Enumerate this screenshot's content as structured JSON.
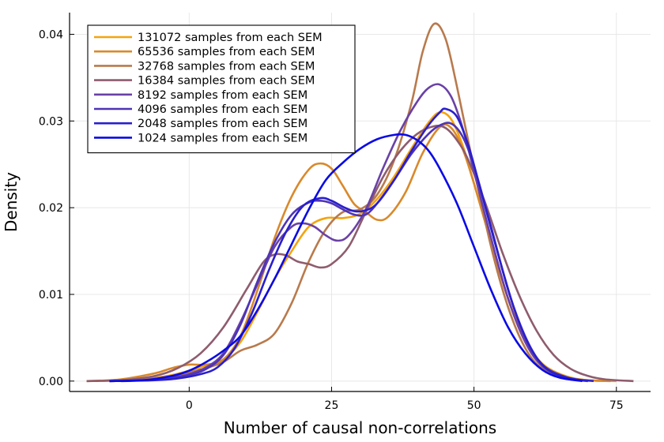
{
  "chart_data": {
    "type": "line",
    "title": "",
    "xlabel": "Number of causal non-correlations",
    "ylabel": "Density",
    "xlim": [
      -21,
      81
    ],
    "ylim": [
      -0.0012,
      0.0425
    ],
    "xticks": [
      0,
      25,
      50,
      75
    ],
    "xtick_labels": [
      "0",
      "25",
      "50",
      "75"
    ],
    "yticks": [
      0.0,
      0.01,
      0.02,
      0.03,
      0.04
    ],
    "ytick_labels": [
      "0.00",
      "0.01",
      "0.02",
      "0.03",
      "0.04"
    ],
    "grid": true,
    "legend_position": "top-left",
    "series": [
      {
        "name": "131072 samples from each SEM",
        "color": "#f4a30d",
        "points": [
          [
            -14,
            0
          ],
          [
            -8,
            0.0002
          ],
          [
            -3,
            0.0007
          ],
          [
            0,
            0.0012
          ],
          [
            3,
            0.0018
          ],
          [
            6,
            0.0025
          ],
          [
            9,
            0.0045
          ],
          [
            12,
            0.008
          ],
          [
            15,
            0.0118
          ],
          [
            18,
            0.015
          ],
          [
            21,
            0.0178
          ],
          [
            24,
            0.0188
          ],
          [
            27,
            0.0188
          ],
          [
            30,
            0.0193
          ],
          [
            33,
            0.021
          ],
          [
            36,
            0.0236
          ],
          [
            39,
            0.0268
          ],
          [
            42,
            0.0298
          ],
          [
            44,
            0.031
          ],
          [
            46,
            0.0302
          ],
          [
            48,
            0.0272
          ],
          [
            50,
            0.0228
          ],
          [
            53,
            0.016
          ],
          [
            56,
            0.0095
          ],
          [
            59,
            0.0048
          ],
          [
            62,
            0.002
          ],
          [
            66,
            0.0006
          ],
          [
            70,
            0.0001
          ],
          [
            75,
            0
          ]
        ]
      },
      {
        "name": "65536 samples from each SEM",
        "color": "#d9892b",
        "points": [
          [
            -18,
            0
          ],
          [
            -12,
            0.0002
          ],
          [
            -6,
            0.0009
          ],
          [
            -3,
            0.0015
          ],
          [
            0,
            0.0019
          ],
          [
            3,
            0.0019
          ],
          [
            6,
            0.0025
          ],
          [
            9,
            0.0052
          ],
          [
            12,
            0.0105
          ],
          [
            15,
            0.0165
          ],
          [
            18,
            0.0213
          ],
          [
            21,
            0.0244
          ],
          [
            23,
            0.0251
          ],
          [
            25,
            0.0245
          ],
          [
            27,
            0.0225
          ],
          [
            29,
            0.0204
          ],
          [
            31,
            0.0195
          ],
          [
            33,
            0.0186
          ],
          [
            35,
            0.019
          ],
          [
            38,
            0.0218
          ],
          [
            41,
            0.0263
          ],
          [
            44,
            0.0293
          ],
          [
            46,
            0.0292
          ],
          [
            48,
            0.0268
          ],
          [
            50,
            0.0228
          ],
          [
            53,
            0.016
          ],
          [
            56,
            0.0095
          ],
          [
            59,
            0.0047
          ],
          [
            62,
            0.0019
          ],
          [
            66,
            0.0005
          ],
          [
            70,
            0.0001
          ],
          [
            74,
            0
          ]
        ]
      },
      {
        "name": "32768 samples from each SEM",
        "color": "#b87a4d",
        "points": [
          [
            -14,
            0
          ],
          [
            -8,
            0.0002
          ],
          [
            -3,
            0.0006
          ],
          [
            0,
            0.001
          ],
          [
            3,
            0.0015
          ],
          [
            6,
            0.0022
          ],
          [
            9,
            0.0035
          ],
          [
            12,
            0.0042
          ],
          [
            15,
            0.0055
          ],
          [
            18,
            0.009
          ],
          [
            21,
            0.0138
          ],
          [
            24,
            0.0175
          ],
          [
            27,
            0.0195
          ],
          [
            30,
            0.0198
          ],
          [
            33,
            0.0215
          ],
          [
            36,
            0.0255
          ],
          [
            39,
            0.032
          ],
          [
            41,
            0.038
          ],
          [
            43,
            0.0412
          ],
          [
            45,
            0.0395
          ],
          [
            47,
            0.034
          ],
          [
            50,
            0.0245
          ],
          [
            53,
            0.0155
          ],
          [
            56,
            0.0085
          ],
          [
            59,
            0.0038
          ],
          [
            62,
            0.0014
          ],
          [
            66,
            0.0003
          ],
          [
            70,
            0
          ]
        ]
      },
      {
        "name": "16384 samples from each SEM",
        "color": "#8e5c6e",
        "points": [
          [
            -18,
            0
          ],
          [
            -12,
            0.0001
          ],
          [
            -6,
            0.0006
          ],
          [
            -2,
            0.0015
          ],
          [
            2,
            0.0032
          ],
          [
            6,
            0.0062
          ],
          [
            10,
            0.0105
          ],
          [
            13,
            0.0137
          ],
          [
            15,
            0.0146
          ],
          [
            17,
            0.0145
          ],
          [
            19,
            0.0138
          ],
          [
            21,
            0.0135
          ],
          [
            23,
            0.0131
          ],
          [
            25,
            0.0135
          ],
          [
            28,
            0.0155
          ],
          [
            31,
            0.0195
          ],
          [
            34,
            0.0235
          ],
          [
            37,
            0.0265
          ],
          [
            40,
            0.0285
          ],
          [
            43,
            0.0294
          ],
          [
            45,
            0.0292
          ],
          [
            47,
            0.0278
          ],
          [
            49,
            0.0255
          ],
          [
            52,
            0.0205
          ],
          [
            55,
            0.0148
          ],
          [
            58,
            0.0098
          ],
          [
            61,
            0.0058
          ],
          [
            64,
            0.003
          ],
          [
            67,
            0.0014
          ],
          [
            70,
            0.0006
          ],
          [
            73,
            0.0002
          ],
          [
            78,
            0
          ]
        ]
      },
      {
        "name": "8192 samples from each SEM",
        "color": "#6a41a6",
        "points": [
          [
            -14,
            0
          ],
          [
            -8,
            0.0001
          ],
          [
            -3,
            0.0004
          ],
          [
            0,
            0.0008
          ],
          [
            3,
            0.0016
          ],
          [
            6,
            0.0032
          ],
          [
            9,
            0.0068
          ],
          [
            12,
            0.0112
          ],
          [
            15,
            0.0155
          ],
          [
            18,
            0.0178
          ],
          [
            20,
            0.0182
          ],
          [
            22,
            0.0178
          ],
          [
            24,
            0.0168
          ],
          [
            26,
            0.0162
          ],
          [
            28,
            0.0168
          ],
          [
            31,
            0.0198
          ],
          [
            34,
            0.0245
          ],
          [
            37,
            0.0288
          ],
          [
            40,
            0.0322
          ],
          [
            42,
            0.0338
          ],
          [
            44,
            0.0342
          ],
          [
            46,
            0.0328
          ],
          [
            48,
            0.0292
          ],
          [
            50,
            0.0242
          ],
          [
            53,
            0.0165
          ],
          [
            56,
            0.0095
          ],
          [
            59,
            0.0045
          ],
          [
            62,
            0.0017
          ],
          [
            66,
            0.0004
          ],
          [
            70,
            0
          ]
        ]
      },
      {
        "name": "4096 samples from each SEM",
        "color": "#4e34b6",
        "points": [
          [
            -14,
            0
          ],
          [
            -8,
            0.0001
          ],
          [
            -3,
            0.0004
          ],
          [
            0,
            0.0007
          ],
          [
            3,
            0.0014
          ],
          [
            6,
            0.003
          ],
          [
            9,
            0.0065
          ],
          [
            12,
            0.0115
          ],
          [
            15,
            0.016
          ],
          [
            18,
            0.0192
          ],
          [
            21,
            0.0206
          ],
          [
            23,
            0.0208
          ],
          [
            25,
            0.0205
          ],
          [
            27,
            0.0198
          ],
          [
            29,
            0.0192
          ],
          [
            31,
            0.0192
          ],
          [
            33,
            0.0205
          ],
          [
            36,
            0.0232
          ],
          [
            39,
            0.0262
          ],
          [
            42,
            0.0285
          ],
          [
            44,
            0.0295
          ],
          [
            46,
            0.0297
          ],
          [
            48,
            0.0282
          ],
          [
            50,
            0.0248
          ],
          [
            53,
            0.0178
          ],
          [
            56,
            0.0105
          ],
          [
            59,
            0.005
          ],
          [
            62,
            0.0019
          ],
          [
            66,
            0.0005
          ],
          [
            70,
            0
          ]
        ]
      },
      {
        "name": "2048 samples from each SEM",
        "color": "#2a1fcc",
        "points": [
          [
            -12,
            0
          ],
          [
            -6,
            0.0001
          ],
          [
            -2,
            0.0003
          ],
          [
            2,
            0.0008
          ],
          [
            5,
            0.0016
          ],
          [
            8,
            0.0038
          ],
          [
            11,
            0.0078
          ],
          [
            14,
            0.0128
          ],
          [
            17,
            0.0172
          ],
          [
            20,
            0.0202
          ],
          [
            23,
            0.0211
          ],
          [
            25,
            0.0208
          ],
          [
            27,
            0.0201
          ],
          [
            29,
            0.0196
          ],
          [
            31,
            0.0197
          ],
          [
            33,
            0.0205
          ],
          [
            36,
            0.0232
          ],
          [
            39,
            0.0265
          ],
          [
            42,
            0.0295
          ],
          [
            44,
            0.031
          ],
          [
            45,
            0.0314
          ],
          [
            47,
            0.0305
          ],
          [
            49,
            0.0272
          ],
          [
            51,
            0.0225
          ],
          [
            54,
            0.0152
          ],
          [
            57,
            0.0085
          ],
          [
            60,
            0.0038
          ],
          [
            63,
            0.0013
          ],
          [
            67,
            0.0003
          ],
          [
            71,
            0
          ]
        ]
      },
      {
        "name": "1024 samples from each SEM",
        "color": "#0a0ae6",
        "points": [
          [
            -14,
            0
          ],
          [
            -8,
            0.0001
          ],
          [
            -3,
            0.0006
          ],
          [
            0,
            0.0012
          ],
          [
            3,
            0.0022
          ],
          [
            6,
            0.0035
          ],
          [
            9,
            0.0052
          ],
          [
            12,
            0.0082
          ],
          [
            15,
            0.0118
          ],
          [
            18,
            0.0158
          ],
          [
            21,
            0.0198
          ],
          [
            24,
            0.0232
          ],
          [
            27,
            0.0252
          ],
          [
            30,
            0.0268
          ],
          [
            33,
            0.0279
          ],
          [
            36,
            0.0284
          ],
          [
            38,
            0.0284
          ],
          [
            40,
            0.0278
          ],
          [
            42,
            0.0266
          ],
          [
            44,
            0.0245
          ],
          [
            47,
            0.0205
          ],
          [
            50,
            0.0155
          ],
          [
            53,
            0.0105
          ],
          [
            56,
            0.0062
          ],
          [
            59,
            0.0032
          ],
          [
            62,
            0.0013
          ],
          [
            65,
            0.0004
          ],
          [
            69,
            0
          ]
        ]
      }
    ]
  }
}
